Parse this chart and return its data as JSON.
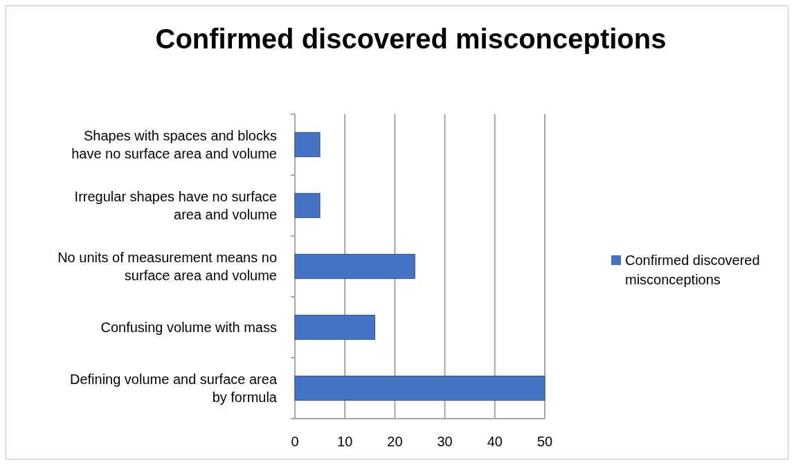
{
  "chart_data": {
    "type": "bar",
    "orientation": "horizontal",
    "title": "Confirmed discovered misconceptions",
    "categories": [
      "Shapes with spaces and blocks have no surface area and volume",
      "Irregular shapes have no surface area and volume",
      "No units of measurement means no surface area and volume",
      "Confusing volume with mass",
      "Defining volume and surface area by formula"
    ],
    "series": [
      {
        "name": "Confirmed discovered misconceptions",
        "color": "#4472c4",
        "values": [
          5,
          5,
          24,
          16,
          50
        ]
      }
    ],
    "xlim": [
      0,
      50
    ],
    "xticks": [
      0,
      10,
      20,
      30,
      40,
      50
    ],
    "grid": "x",
    "legend": "right"
  }
}
